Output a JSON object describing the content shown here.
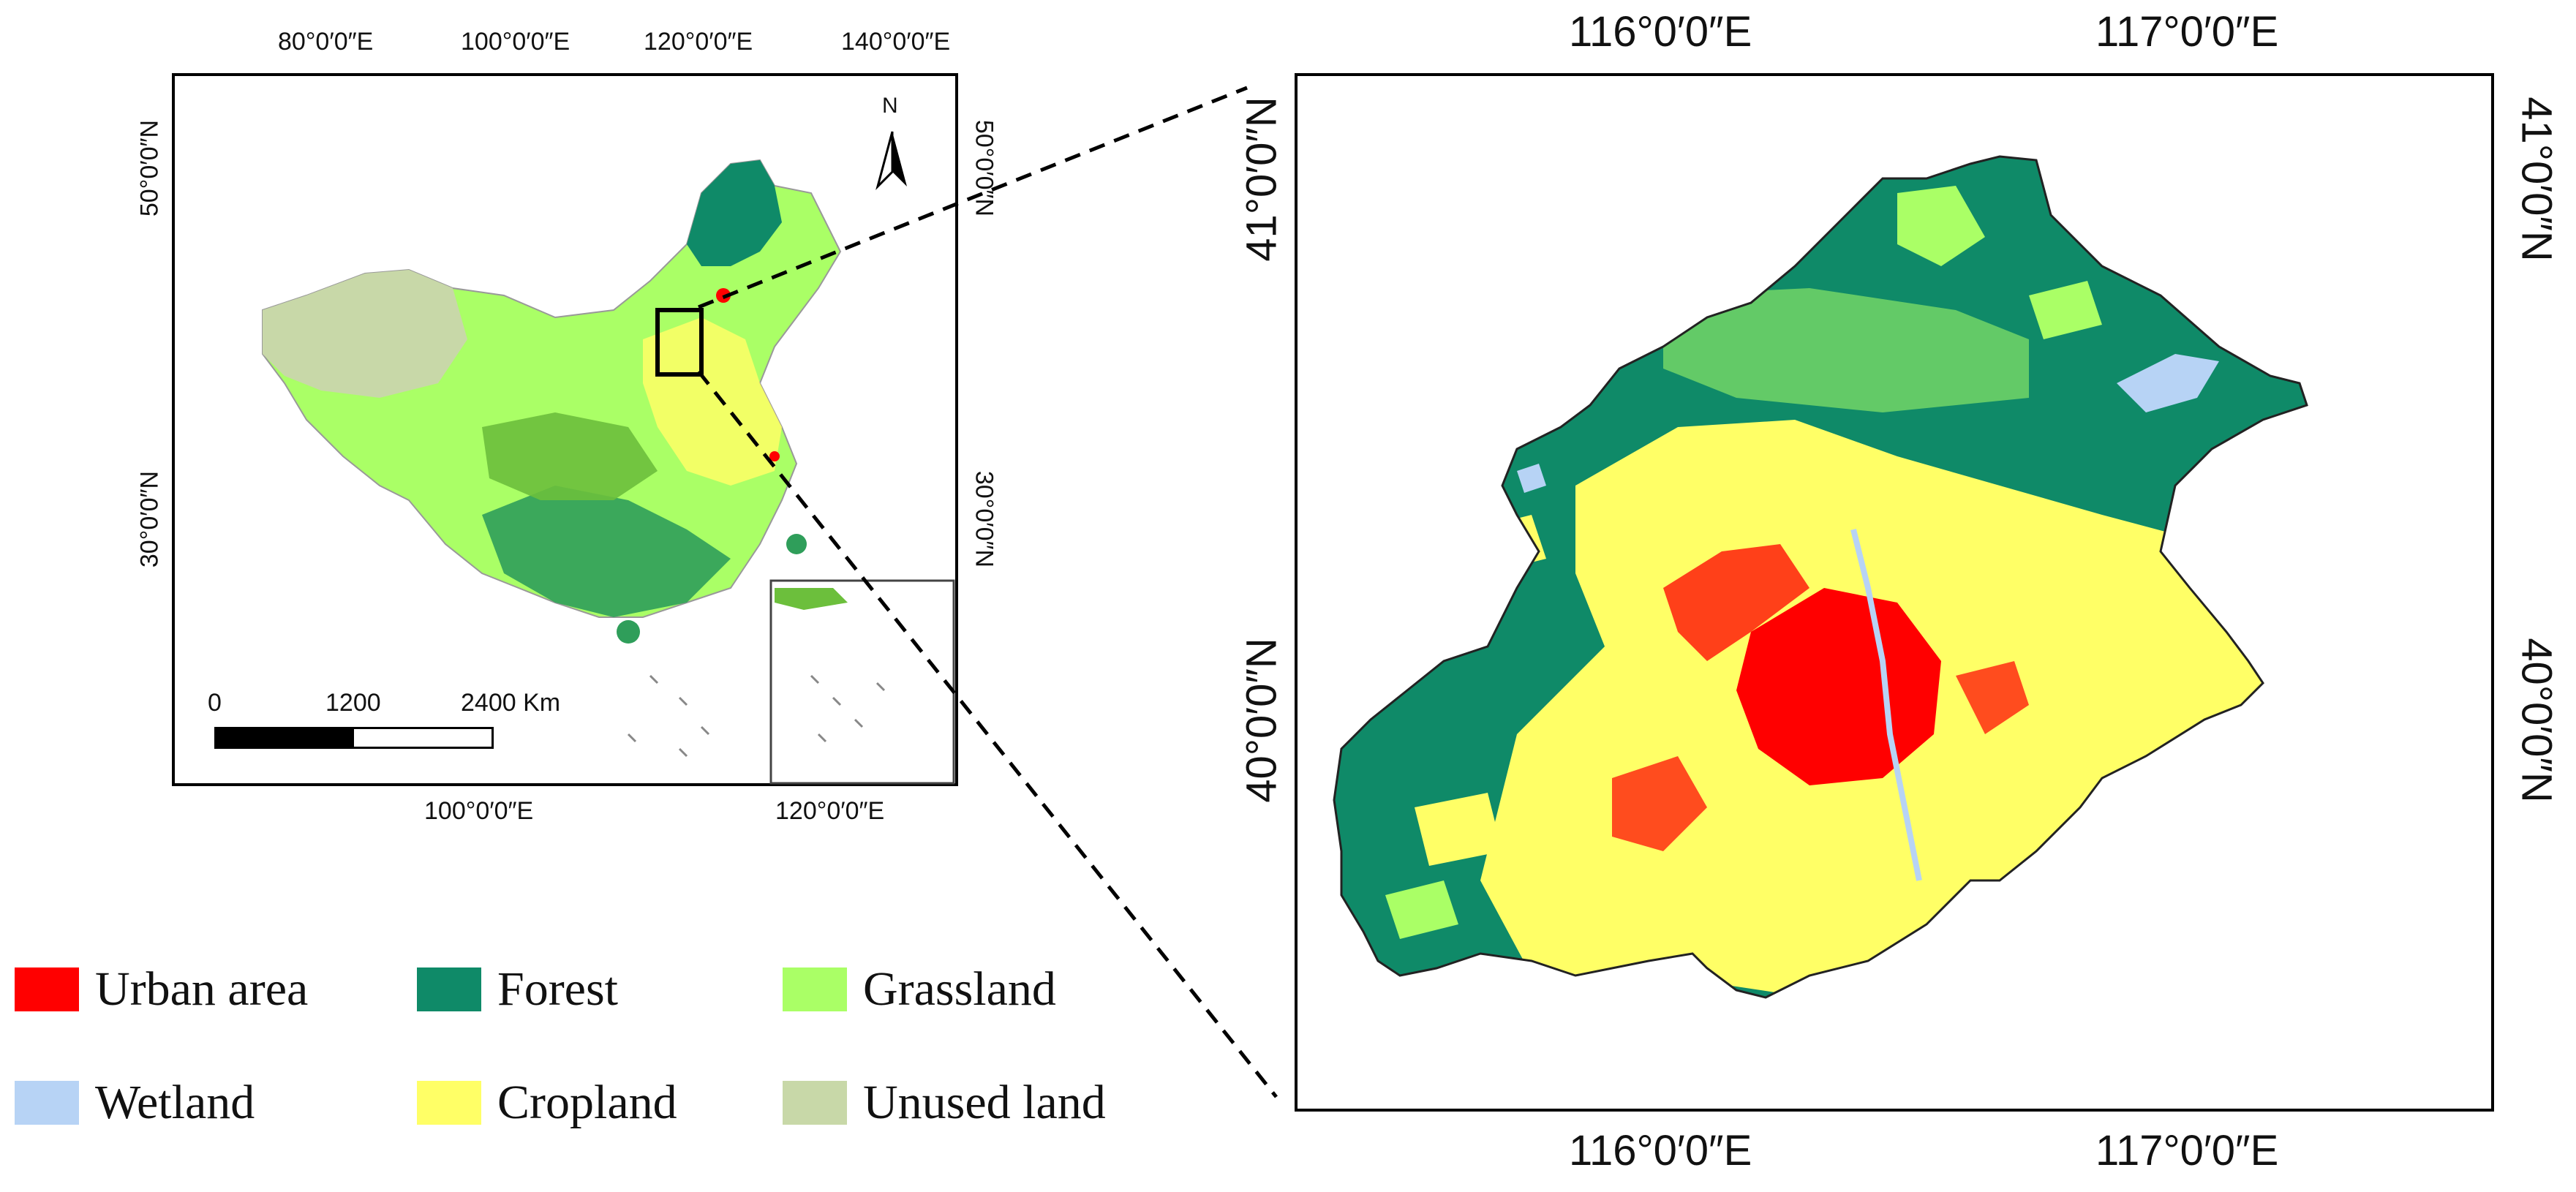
{
  "overview_map": {
    "top_ticks": [
      "80°0′0″E",
      "100°0′0″E",
      "120°0′0″E",
      "140°0′0″E"
    ],
    "bottom_ticks": [
      "100°0′0″E",
      "120°0′0″E"
    ],
    "left_ticks": [
      "50°0′0″N",
      "30°0′0″N"
    ],
    "right_ticks": [
      "50°0′0″N",
      "30°0′0″N"
    ],
    "north_label": "N",
    "scale_bar": {
      "labels": [
        "0",
        "1200",
        "2400 Km"
      ]
    }
  },
  "detail_map": {
    "top_ticks": [
      "116°0′0″E",
      "117°0′0″E"
    ],
    "bottom_ticks": [
      "116°0′0″E",
      "117°0′0″E"
    ],
    "left_ticks": [
      "41°0′0″N",
      "40°0′0″N"
    ],
    "right_ticks": [
      "41°0′0″N",
      "40°0′0″N"
    ]
  },
  "legend": [
    {
      "label": "Urban area",
      "color": "#ff0000"
    },
    {
      "label": "Forest",
      "color": "#0f8a68"
    },
    {
      "label": "Grassland",
      "color": "#aaff66"
    },
    {
      "label": "Wetland",
      "color": "#b7d3f5"
    },
    {
      "label": "Cropland",
      "color": "#ffff66"
    },
    {
      "label": "Unused land",
      "color": "#c8d8a8"
    }
  ]
}
